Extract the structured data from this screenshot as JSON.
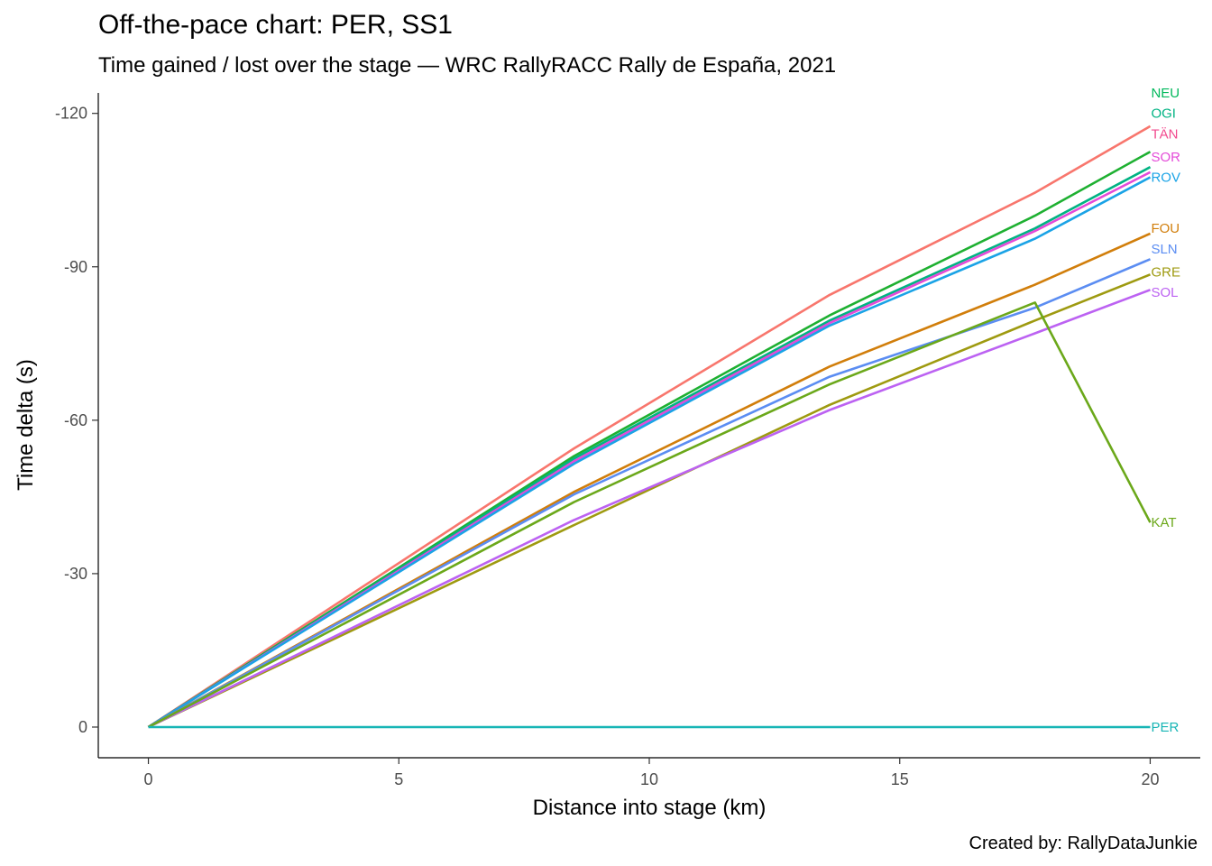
{
  "chart_data": {
    "type": "line",
    "title": "Off-the-pace chart: PER, SS1",
    "subtitle": "Time gained / lost over the stage — WRC RallyRACC Rally de España, 2021",
    "caption": "Created by: RallyDataJunkie",
    "xlabel": "Distance into stage (km)",
    "ylabel": "Time delta (s)",
    "xlim": [
      -1,
      21
    ],
    "ylim": [
      6,
      -124
    ],
    "y_reversed": true,
    "xticks": [
      0,
      5,
      10,
      15,
      20
    ],
    "xtick_labels": [
      "0",
      "5",
      "10",
      "15",
      "20"
    ],
    "yticks": [
      0,
      -30,
      -60,
      -90,
      -120
    ],
    "ytick_labels": [
      "0",
      "-30",
      "-60",
      "-90",
      "-120"
    ],
    "grid": false,
    "legend": "none; series names shown at line ends",
    "x": [
      0,
      8.5,
      13.6,
      17.7,
      20
    ],
    "series": [
      {
        "name": "NEU",
        "color": "#F8766D",
        "values": [
          0,
          -54.5,
          -84.5,
          -104.5,
          -117.5
        ]
      },
      {
        "name": "OGI",
        "color": "#1EB031",
        "values": [
          0,
          -53.0,
          -80.5,
          -100.0,
          -112.5
        ]
      },
      {
        "name": "TÄN",
        "color": "#00B383",
        "values": [
          0,
          -52.5,
          -79.5,
          -97.5,
          -109.5
        ]
      },
      {
        "name": "SOR",
        "color": "#E44AD8",
        "values": [
          0,
          -52.0,
          -79.0,
          -97.0,
          -108.5
        ]
      },
      {
        "name": "ROV",
        "color": "#1AA3E6",
        "values": [
          0,
          -51.5,
          -78.5,
          -95.5,
          -107.5
        ]
      },
      {
        "name": "FOU",
        "color": "#D17E0B",
        "values": [
          0,
          -46.0,
          -70.5,
          -86.5,
          -96.5
        ]
      },
      {
        "name": "SLN",
        "color": "#5B8DF2",
        "values": [
          0,
          -45.5,
          -68.5,
          -82.0,
          -91.5
        ]
      },
      {
        "name": "GRE",
        "color": "#9E9A10",
        "values": [
          0,
          -39.5,
          -63.0,
          -79.5,
          -88.5
        ]
      },
      {
        "name": "SOL",
        "color": "#BC62F2",
        "values": [
          0,
          -40.5,
          -62.0,
          -77.0,
          -85.5
        ]
      },
      {
        "name": "KAT",
        "color": "#6BA81A",
        "values": [
          0,
          -44.0,
          -67.0,
          -83.0,
          -40.0
        ]
      },
      {
        "name": "PER",
        "color": "#17B5B5",
        "values": [
          0,
          0,
          0,
          0,
          0
        ]
      }
    ],
    "labels": [
      {
        "text": "NEU",
        "color": "#00B85B",
        "y": -124
      },
      {
        "text": "OGI",
        "color": "#00B383",
        "y": -120
      },
      {
        "text": "TÄN",
        "color": "#F2498E",
        "y": -116
      },
      {
        "text": "SOR",
        "color": "#E44AD8",
        "y": -111.5
      },
      {
        "text": "ROV",
        "color": "#1AA3E6",
        "y": -107.5
      },
      {
        "text": "FOU",
        "color": "#D17E0B",
        "y": -97.5
      },
      {
        "text": "SLN",
        "color": "#5B8DF2",
        "y": -93.5
      },
      {
        "text": "GRE",
        "color": "#9E9A10",
        "y": -89
      },
      {
        "text": "SOL",
        "color": "#BC62F2",
        "y": -85
      },
      {
        "text": "KAT",
        "color": "#6BA81A",
        "y": -40
      },
      {
        "text": "PER",
        "color": "#17B5B5",
        "y": 0
      }
    ]
  }
}
